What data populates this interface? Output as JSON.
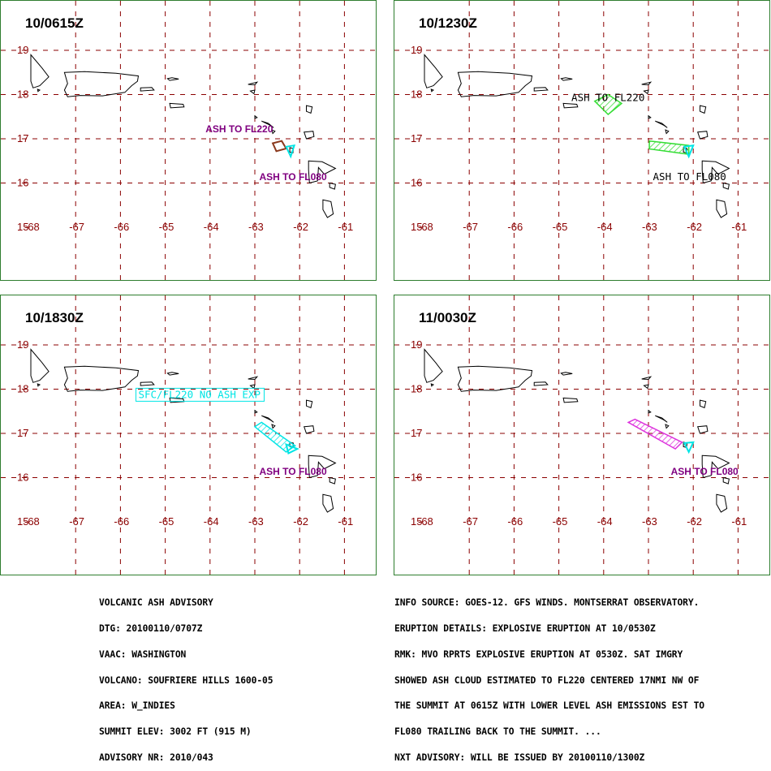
{
  "colors": {
    "grid": "#8b0000",
    "border": "#2e7d2e",
    "coast": "#000000",
    "annot_purple": "#800080",
    "annot_black": "#000000",
    "annot_cyan": "#00e5e5"
  },
  "axes": {
    "lat_labels": [
      "19",
      "18",
      "17",
      "16",
      "15"
    ],
    "lon_labels": [
      "-68",
      "-67",
      "-66",
      "-65",
      "-64",
      "-63",
      "-62",
      "-61"
    ]
  },
  "panels": [
    {
      "time": "10/0615Z",
      "annotations": [
        {
          "text": "ASH TO FL220",
          "color": "#800080",
          "style": "bold",
          "lon": -64.1,
          "lat": 17.15
        },
        {
          "text": "ASH TO FL080",
          "color": "#800080",
          "style": "bold",
          "lon": -62.9,
          "lat": 16.06
        }
      ]
    },
    {
      "time": "10/1230Z",
      "annotations": [
        {
          "text": "ASH TO FL220",
          "color": "#000000",
          "style": "mono",
          "lon": -64.72,
          "lat": 17.85
        },
        {
          "text": "ASH TO FL080",
          "color": "#000000",
          "style": "mono",
          "lon": -62.9,
          "lat": 16.06
        }
      ]
    },
    {
      "time": "10/1830Z",
      "annotations": [
        {
          "text": "SFC/FL220 NO ASH EXP",
          "color": "#00e5e5",
          "style": "mono-box",
          "lon": -65.6,
          "lat": 17.8
        },
        {
          "text": "ASH TO FL080",
          "color": "#800080",
          "style": "bold",
          "lon": -62.9,
          "lat": 16.06
        }
      ]
    },
    {
      "time": "11/0030Z",
      "annotations": [
        {
          "text": "ASH TO FL080",
          "color": "#800080",
          "style": "bold",
          "lon": -62.5,
          "lat": 16.06
        }
      ]
    }
  ],
  "advisory_left": [
    "VOLCANIC ASH ADVISORY",
    "DTG: 20100110/0707Z",
    "VAAC: WASHINGTON",
    "VOLCANO: SOUFRIERE HILLS 1600-05",
    "AREA: W_INDIES",
    "SUMMIT ELEV: 3002 FT (915 M)",
    "ADVISORY NR: 2010/043"
  ],
  "advisory_right": [
    "INFO SOURCE: GOES-12. GFS WINDS. MONTSERRAT OBSERVATORY.",
    "ERUPTION DETAILS: EXPLOSIVE ERUPTION AT 10/0530Z",
    "RMK: MVO RPRTS EXPLOSIVE ERUPTION AT 0530Z. SAT IMGRY",
    "SHOWED ASH CLOUD ESTIMATED TO FL220 CENTERED 17NMI NW OF",
    "THE SUMMIT AT 0615Z WITH LOWER LEVEL ASH EMISSIONS EST TO",
    "FL080 TRAILING BACK TO THE SUMMIT. ...",
    "NXT ADVISORY: WILL BE ISSUED BY 20100110/1300Z"
  ]
}
